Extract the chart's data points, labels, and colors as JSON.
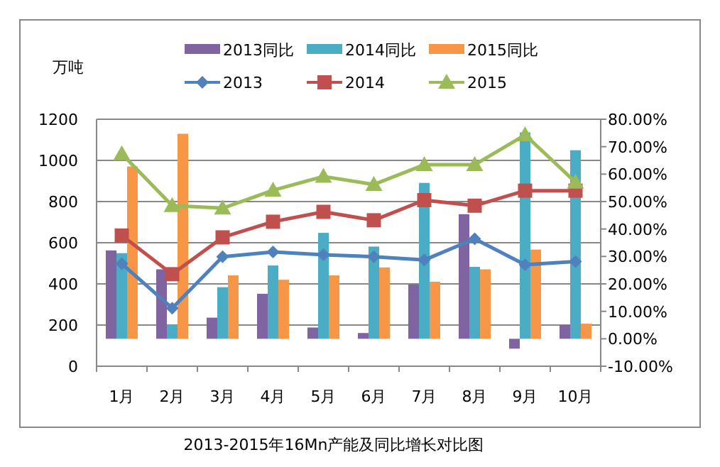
{
  "chart_data": {
    "type": "bar",
    "title": "2013-2015年16Mn产能及同比增长对比图",
    "ylabel": "万吨",
    "categories": [
      "1月",
      "2月",
      "3月",
      "4月",
      "5月",
      "6月",
      "7月",
      "8月",
      "9月",
      "10月"
    ],
    "series": [
      {
        "name": "2013同比",
        "axis": "y2",
        "color": "#8064a2",
        "values": [
          32.2,
          25.3,
          7.7,
          16.4,
          4.1,
          2.1,
          19.8,
          45.4,
          -3.6,
          5.0
        ]
      },
      {
        "name": "2014同比",
        "axis": "y2",
        "color": "#4bacc6",
        "values": [
          31.2,
          5.2,
          18.8,
          26.7,
          38.6,
          33.6,
          56.8,
          26.2,
          75.2,
          68.7
        ]
      },
      {
        "name": "2015同比",
        "axis": "y2",
        "color": "#f79646",
        "values": [
          62.8,
          74.7,
          23.1,
          21.5,
          23.1,
          26.0,
          20.8,
          25.3,
          32.5,
          5.5
        ]
      },
      {
        "name": "2013",
        "type": "line",
        "axis": "y",
        "marker": "diamond",
        "color": "#4f81bd",
        "values": [
          498,
          282,
          532,
          555,
          541,
          532,
          516,
          619,
          493,
          509
        ]
      },
      {
        "name": "2014",
        "type": "line",
        "axis": "y",
        "marker": "square",
        "color": "#c0504d",
        "values": [
          635,
          447,
          626,
          702,
          750,
          709,
          807,
          780,
          853,
          853
        ]
      },
      {
        "name": "2015",
        "type": "line",
        "axis": "y",
        "marker": "triangle",
        "color": "#9bbb59",
        "values": [
          1032,
          780,
          768,
          855,
          922,
          883,
          979,
          979,
          1124,
          894
        ]
      }
    ],
    "ylim": [
      0,
      1200
    ],
    "yticks": [
      0,
      200,
      400,
      600,
      800,
      1000,
      1200
    ],
    "y2lim": [
      -10,
      80
    ],
    "y2ticks": [
      {
        "value": -10,
        "label": "-10.00%"
      },
      {
        "value": 0,
        "label": "0.00%"
      },
      {
        "value": 10,
        "label": "10.00%"
      },
      {
        "value": 20,
        "label": "20.00%"
      },
      {
        "value": 30,
        "label": "30.00%"
      },
      {
        "value": 40,
        "label": "40.00%"
      },
      {
        "value": 50,
        "label": "50.00%"
      },
      {
        "value": 60,
        "label": "60.00%"
      },
      {
        "value": 70,
        "label": "70.00%"
      },
      {
        "value": 80,
        "label": "80.00%"
      }
    ],
    "grid": "y",
    "legend": "top"
  }
}
